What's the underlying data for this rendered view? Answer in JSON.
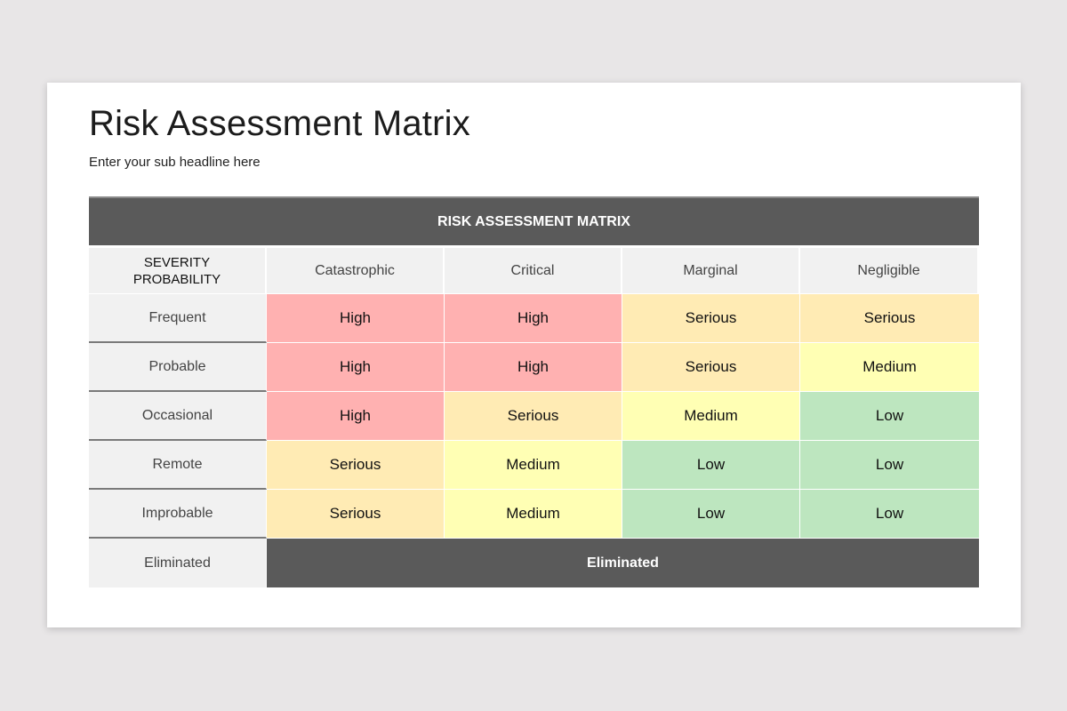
{
  "slide": {
    "title": "Risk Assessment Matrix",
    "subtitle": "Enter your sub headline here"
  },
  "matrix": {
    "header": "RISK ASSESSMENT MATRIX",
    "corner_line1": "SEVERITY",
    "corner_line2": "PROBABILITY",
    "severity": [
      "Catastrophic",
      "Critical",
      "Marginal",
      "Negligible"
    ],
    "rows": [
      {
        "label": "Frequent",
        "cells": [
          "High",
          "High",
          "Serious",
          "Serious"
        ]
      },
      {
        "label": "Probable",
        "cells": [
          "High",
          "High",
          "Serious",
          "Medium"
        ]
      },
      {
        "label": "Occasional",
        "cells": [
          "High",
          "Serious",
          "Medium",
          "Low"
        ]
      },
      {
        "label": "Remote",
        "cells": [
          "Serious",
          "Medium",
          "Low",
          "Low"
        ]
      },
      {
        "label": "Improbable",
        "cells": [
          "Serious",
          "Medium",
          "Low",
          "Low"
        ]
      }
    ],
    "eliminated_label": "Eliminated",
    "eliminated_value": "Eliminated"
  },
  "colors": {
    "High": "#ffb1b1",
    "Serious": "#ffebb4",
    "Medium": "#ffffb4",
    "Low": "#bde6bf",
    "header": "#5a5a5a"
  }
}
